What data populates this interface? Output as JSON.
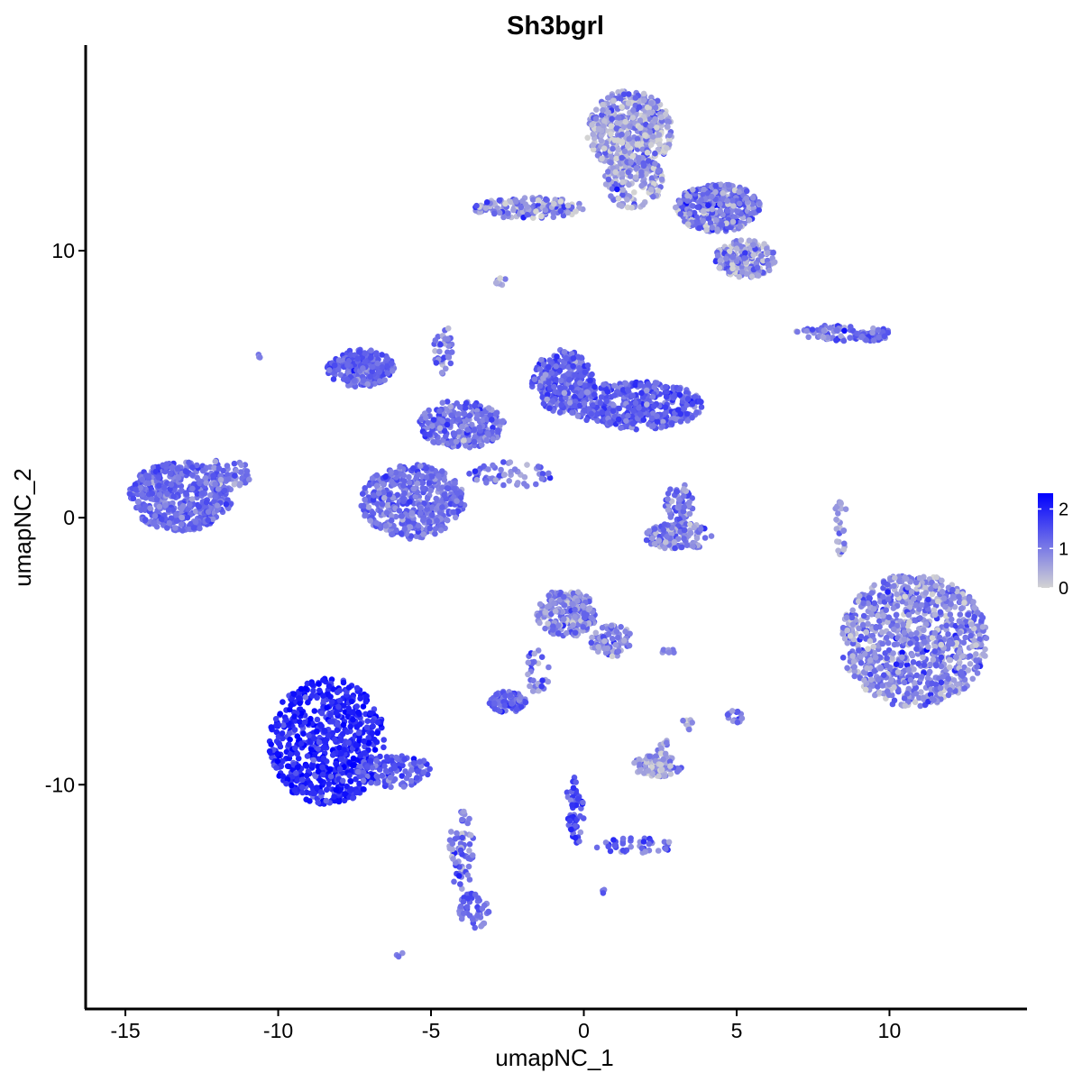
{
  "chart_data": {
    "type": "scatter",
    "title": "Sh3bgrl",
    "xlabel": "umapNC_1",
    "ylabel": "umapNC_2",
    "xlim": [
      -16.3,
      14.5
    ],
    "ylim": [
      -18.4,
      17.7
    ],
    "xticks": [
      -15,
      -10,
      -5,
      0,
      5,
      10
    ],
    "xtick_labels": [
      "-15",
      "-10",
      "-5",
      "0",
      "5",
      "10"
    ],
    "yticks": [
      -10,
      0,
      10
    ],
    "ytick_labels": [
      "-10",
      "0",
      "10"
    ],
    "grid": false,
    "legend": {
      "position": "right",
      "type": "colorbar",
      "title": "",
      "ticks": [
        0,
        1,
        2
      ],
      "tick_labels": [
        "0",
        "1",
        "2"
      ],
      "max": 2.4,
      "colors": {
        "low": "#d3d3d3",
        "high": "#0000ff"
      }
    },
    "series": [
      {
        "clusters": [
          {
            "cx": -13.2,
            "cy": 0.8,
            "rx": 1.7,
            "ry": 1.3,
            "n": 520,
            "mean_expr": 1.2,
            "spread_expr": 0.25
          },
          {
            "cx": -11.7,
            "cy": 1.6,
            "rx": 0.8,
            "ry": 0.6,
            "n": 60,
            "mean_expr": 1.0,
            "spread_expr": 0.3
          },
          {
            "cx": -8.4,
            "cy": -8.4,
            "rx": 1.9,
            "ry": 2.4,
            "n": 650,
            "mean_expr": 1.95,
            "spread_expr": 0.3
          },
          {
            "cx": -6.2,
            "cy": -9.5,
            "rx": 1.3,
            "ry": 0.6,
            "n": 120,
            "mean_expr": 1.3,
            "spread_expr": 0.35
          },
          {
            "cx": -4.0,
            "cy": -12.5,
            "rx": 0.4,
            "ry": 1.6,
            "n": 70,
            "mean_expr": 1.0,
            "spread_expr": 0.4
          },
          {
            "cx": -3.6,
            "cy": -14.7,
            "rx": 0.5,
            "ry": 0.7,
            "n": 50,
            "mean_expr": 1.2,
            "spread_expr": 0.3
          },
          {
            "cx": -5.6,
            "cy": 0.6,
            "rx": 1.7,
            "ry": 1.4,
            "n": 480,
            "mean_expr": 1.15,
            "spread_expr": 0.3
          },
          {
            "cx": -7.3,
            "cy": 5.6,
            "rx": 1.1,
            "ry": 0.7,
            "n": 260,
            "mean_expr": 1.25,
            "spread_expr": 0.25
          },
          {
            "cx": -4.0,
            "cy": 3.5,
            "rx": 1.4,
            "ry": 0.9,
            "n": 260,
            "mean_expr": 1.15,
            "spread_expr": 0.35
          },
          {
            "cx": -0.7,
            "cy": 5.1,
            "rx": 1.0,
            "ry": 1.2,
            "n": 320,
            "mean_expr": 1.3,
            "spread_expr": 0.3
          },
          {
            "cx": 1.7,
            "cy": 4.2,
            "rx": 2.2,
            "ry": 0.9,
            "n": 460,
            "mean_expr": 1.3,
            "spread_expr": 0.3
          },
          {
            "cx": -4.6,
            "cy": 6.3,
            "rx": 0.3,
            "ry": 1.0,
            "n": 40,
            "mean_expr": 0.9,
            "spread_expr": 0.4
          },
          {
            "cx": -2.4,
            "cy": 1.6,
            "rx": 1.4,
            "ry": 0.5,
            "n": 60,
            "mean_expr": 1.0,
            "spread_expr": 0.4
          },
          {
            "cx": 1.5,
            "cy": 14.5,
            "rx": 1.4,
            "ry": 1.5,
            "n": 520,
            "mean_expr": 0.55,
            "spread_expr": 0.5
          },
          {
            "cx": 1.6,
            "cy": 12.6,
            "rx": 1.0,
            "ry": 1.0,
            "n": 150,
            "mean_expr": 0.7,
            "spread_expr": 0.5
          },
          {
            "cx": 4.4,
            "cy": 11.6,
            "rx": 1.4,
            "ry": 0.9,
            "n": 380,
            "mean_expr": 1.0,
            "spread_expr": 0.45
          },
          {
            "cx": 5.3,
            "cy": 9.7,
            "rx": 1.0,
            "ry": 0.7,
            "n": 200,
            "mean_expr": 0.7,
            "spread_expr": 0.5
          },
          {
            "cx": -1.8,
            "cy": 11.6,
            "rx": 1.8,
            "ry": 0.4,
            "n": 160,
            "mean_expr": 0.8,
            "spread_expr": 0.5
          },
          {
            "cx": -2.7,
            "cy": 8.9,
            "rx": 0.2,
            "ry": 0.2,
            "n": 8,
            "mean_expr": 0.4,
            "spread_expr": 0.4
          },
          {
            "cx": 8.1,
            "cy": 6.9,
            "rx": 1.2,
            "ry": 0.3,
            "n": 70,
            "mean_expr": 0.9,
            "spread_expr": 0.4
          },
          {
            "cx": 9.5,
            "cy": 6.9,
            "rx": 0.5,
            "ry": 0.3,
            "n": 40,
            "mean_expr": 1.2,
            "spread_expr": 0.3
          },
          {
            "cx": 3.1,
            "cy": 0.5,
            "rx": 0.5,
            "ry": 0.8,
            "n": 60,
            "mean_expr": 1.0,
            "spread_expr": 0.4
          },
          {
            "cx": 3.1,
            "cy": -0.7,
            "rx": 1.1,
            "ry": 0.5,
            "n": 120,
            "mean_expr": 0.9,
            "spread_expr": 0.4
          },
          {
            "cx": 8.4,
            "cy": -0.2,
            "rx": 0.2,
            "ry": 1.2,
            "n": 25,
            "mean_expr": 0.7,
            "spread_expr": 0.4
          },
          {
            "cx": 10.8,
            "cy": -4.6,
            "rx": 2.4,
            "ry": 2.5,
            "n": 950,
            "mean_expr": 0.85,
            "spread_expr": 0.45
          },
          {
            "cx": -0.6,
            "cy": -3.6,
            "rx": 1.0,
            "ry": 0.9,
            "n": 220,
            "mean_expr": 0.85,
            "spread_expr": 0.4
          },
          {
            "cx": 0.9,
            "cy": -4.6,
            "rx": 0.7,
            "ry": 0.6,
            "n": 80,
            "mean_expr": 0.9,
            "spread_expr": 0.4
          },
          {
            "cx": -2.5,
            "cy": -6.9,
            "rx": 0.6,
            "ry": 0.4,
            "n": 90,
            "mean_expr": 1.3,
            "spread_expr": 0.3
          },
          {
            "cx": -1.5,
            "cy": -5.6,
            "rx": 0.4,
            "ry": 1.0,
            "n": 30,
            "mean_expr": 1.0,
            "spread_expr": 0.4
          },
          {
            "cx": 2.4,
            "cy": -9.3,
            "rx": 0.8,
            "ry": 0.4,
            "n": 90,
            "mean_expr": 0.6,
            "spread_expr": 0.4
          },
          {
            "cx": 2.6,
            "cy": -8.6,
            "rx": 0.2,
            "ry": 0.3,
            "n": 12,
            "mean_expr": 0.6,
            "spread_expr": 0.4
          },
          {
            "cx": -0.3,
            "cy": -11.0,
            "rx": 0.3,
            "ry": 1.3,
            "n": 50,
            "mean_expr": 1.5,
            "spread_expr": 0.35
          },
          {
            "cx": 1.7,
            "cy": -12.3,
            "rx": 1.3,
            "ry": 0.3,
            "n": 40,
            "mean_expr": 1.2,
            "spread_expr": 0.4
          },
          {
            "cx": 4.9,
            "cy": -7.5,
            "rx": 0.3,
            "ry": 0.3,
            "n": 15,
            "mean_expr": 0.9,
            "spread_expr": 0.4
          },
          {
            "cx": 3.4,
            "cy": -7.7,
            "rx": 0.2,
            "ry": 0.3,
            "n": 8,
            "mean_expr": 0.7,
            "spread_expr": 0.4
          },
          {
            "cx": 2.8,
            "cy": -5.0,
            "rx": 0.3,
            "ry": 0.1,
            "n": 8,
            "mean_expr": 1.0,
            "spread_expr": 0.4
          },
          {
            "cx": -10.6,
            "cy": 6.1,
            "rx": 0.1,
            "ry": 0.1,
            "n": 3,
            "mean_expr": 0.9,
            "spread_expr": 0.2
          },
          {
            "cx": -6.0,
            "cy": -16.4,
            "rx": 0.15,
            "ry": 0.1,
            "n": 3,
            "mean_expr": 0.9,
            "spread_expr": 0.2
          },
          {
            "cx": 0.6,
            "cy": -14.0,
            "rx": 0.1,
            "ry": 0.1,
            "n": 3,
            "mean_expr": 1.0,
            "spread_expr": 0.2
          }
        ]
      }
    ]
  }
}
